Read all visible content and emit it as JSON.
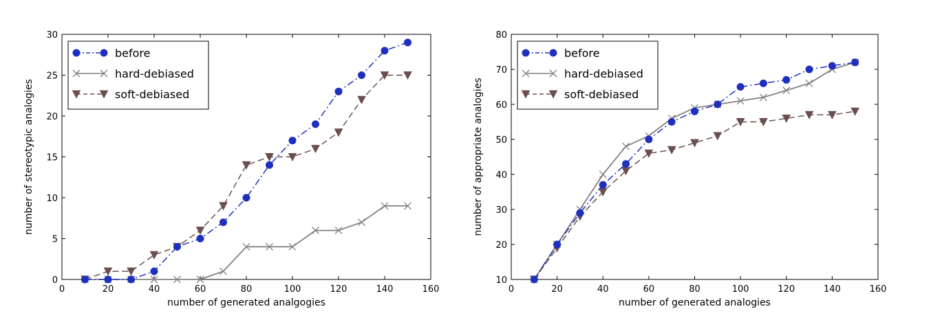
{
  "chart_data": [
    {
      "type": "line",
      "title": "",
      "xlabel": "number of generated analgogies",
      "ylabel": "number of stereotypic analogies",
      "xlim": [
        0,
        160
      ],
      "ylim": [
        0,
        30
      ],
      "xticks": [
        0,
        20,
        40,
        60,
        80,
        100,
        120,
        140,
        160
      ],
      "yticks": [
        0,
        5,
        10,
        15,
        20,
        25,
        30
      ],
      "grid": false,
      "legend_position": "top-left",
      "x": [
        10,
        20,
        30,
        40,
        50,
        60,
        70,
        80,
        90,
        100,
        110,
        120,
        130,
        140,
        150
      ],
      "series": [
        {
          "name": "before",
          "marker": "circle",
          "style": "dash-dot",
          "color": "#1f2fbf",
          "values": [
            0,
            0,
            0,
            1,
            4,
            5,
            7,
            10,
            14,
            17,
            19,
            23,
            25,
            28,
            29
          ]
        },
        {
          "name": "hard-debiased",
          "marker": "x",
          "style": "solid",
          "color": "#808080",
          "values": [
            0,
            0,
            0,
            0,
            0,
            0,
            1,
            4,
            4,
            4,
            6,
            6,
            7,
            9,
            9
          ]
        },
        {
          "name": "soft-debiased",
          "marker": "triangle-down",
          "style": "dashed",
          "color": "#6b4f4f",
          "values": [
            0,
            1,
            1,
            3,
            4,
            6,
            9,
            14,
            15,
            15,
            16,
            18,
            22,
            25,
            25
          ]
        }
      ]
    },
    {
      "type": "line",
      "title": "",
      "xlabel": "number of generated analogies",
      "ylabel": "number of appropriate analogies",
      "xlim": [
        0,
        160
      ],
      "ylim": [
        10,
        80
      ],
      "xticks": [
        0,
        20,
        40,
        60,
        80,
        100,
        120,
        140,
        160
      ],
      "yticks": [
        10,
        20,
        30,
        40,
        50,
        60,
        70,
        80
      ],
      "grid": false,
      "legend_position": "top-left",
      "x": [
        10,
        20,
        30,
        40,
        50,
        60,
        70,
        80,
        90,
        100,
        110,
        120,
        130,
        140,
        150
      ],
      "series": [
        {
          "name": "before",
          "marker": "circle",
          "style": "dash-dot",
          "color": "#1f2fbf",
          "values": [
            10,
            20,
            29,
            37,
            43,
            50,
            55,
            58,
            60,
            65,
            66,
            67,
            70,
            71,
            72
          ]
        },
        {
          "name": "hard-debiased",
          "marker": "x",
          "style": "solid",
          "color": "#808080",
          "values": [
            10,
            20,
            30,
            40,
            48,
            51,
            56,
            59,
            60,
            61,
            62,
            64,
            66,
            70,
            72
          ]
        },
        {
          "name": "soft-debiased",
          "marker": "triangle-down",
          "style": "dashed",
          "color": "#6b4f4f",
          "values": [
            10,
            19,
            28,
            35,
            41,
            46,
            47,
            49,
            51,
            55,
            55,
            56,
            57,
            57,
            58
          ]
        }
      ]
    }
  ]
}
